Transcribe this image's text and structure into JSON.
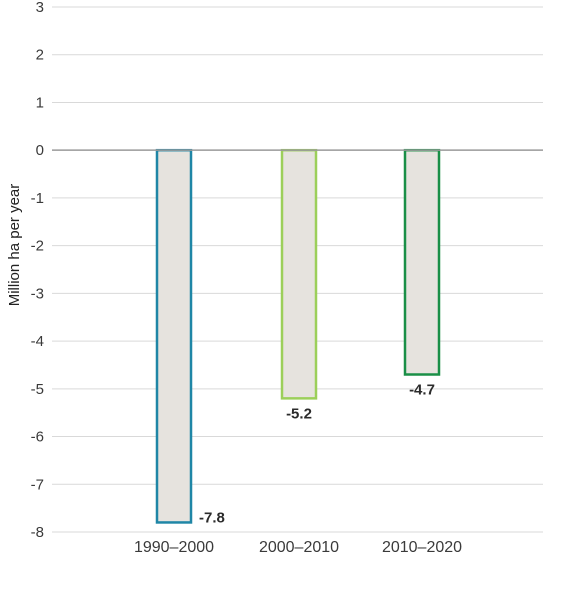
{
  "chart_data": {
    "type": "bar",
    "categories": [
      "1990–2000",
      "2000–2010",
      "2010–2020"
    ],
    "values": [
      -7.8,
      -5.2,
      -4.7
    ],
    "value_labels": [
      "-7.8",
      "-5.2",
      "-4.7"
    ],
    "ylabel": "Million ha per year",
    "ylim": [
      -8,
      3
    ],
    "yticks": [
      "3",
      "2",
      "1",
      "0",
      "-1",
      "-2",
      "-3",
      "-4",
      "-5",
      "-6",
      "-7",
      "-8"
    ],
    "grid": true,
    "bar_fill": "#e6e3de",
    "bar_outline_colors": [
      "#1f86a6",
      "#9ccf5a",
      "#1a8f47"
    ]
  }
}
